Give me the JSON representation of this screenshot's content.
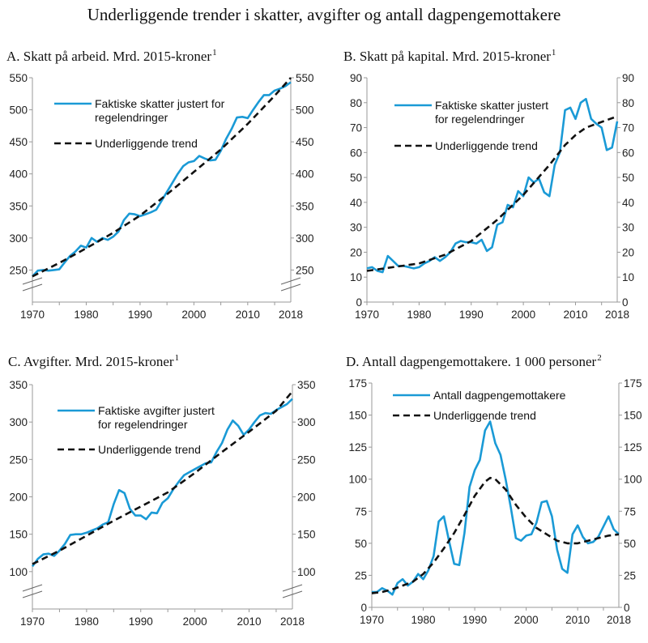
{
  "title": "Underliggende trender i skatter, avgifter og antall dagpengemottakere",
  "colors": {
    "actual": "#1a9ad6",
    "trend": "#111111",
    "axis": "#999999"
  },
  "chart_data": [
    {
      "type": "line",
      "id": "A",
      "title": "A.  Skatt på arbeid. Mrd. 2015-kroner",
      "footnote": "1",
      "ylim": [
        200,
        550
      ],
      "yticks": [
        250,
        300,
        350,
        400,
        450,
        500,
        550
      ],
      "axis_break": true,
      "xlim": [
        1970,
        2018
      ],
      "xtick_labels": [
        "1970",
        "1980",
        "1990",
        "2000",
        "2010",
        "2018"
      ],
      "legend": {
        "actual": [
          "Faktiske skatter justert for",
          "regelendringer"
        ],
        "trend": [
          "Underliggende trend"
        ]
      },
      "series": [
        {
          "name": "Faktiske skatter justert for regelendringer",
          "style": "solid",
          "x": [
            1970,
            1971,
            1972,
            1973,
            1974,
            1975,
            1976,
            1977,
            1978,
            1979,
            1980,
            1981,
            1982,
            1983,
            1984,
            1985,
            1986,
            1987,
            1988,
            1989,
            1990,
            1991,
            1992,
            1993,
            1994,
            1995,
            1996,
            1997,
            1998,
            1999,
            2000,
            2001,
            2002,
            2003,
            2004,
            2005,
            2006,
            2007,
            2008,
            2009,
            2010,
            2011,
            2012,
            2013,
            2014,
            2015,
            2016,
            2017,
            2018
          ],
          "y": [
            240,
            249,
            250,
            249,
            250,
            251,
            262,
            272,
            279,
            288,
            285,
            300,
            294,
            300,
            297,
            302,
            310,
            328,
            338,
            337,
            334,
            337,
            340,
            344,
            358,
            372,
            386,
            400,
            412,
            418,
            420,
            428,
            424,
            421,
            422,
            436,
            455,
            470,
            488,
            489,
            487,
            500,
            512,
            523,
            523,
            530,
            533,
            537,
            543
          ]
        },
        {
          "name": "Underliggende trend",
          "style": "dashed",
          "x": [
            1970,
            1975,
            1980,
            1985,
            1990,
            1995,
            2000,
            2005,
            2010,
            2015,
            2018
          ],
          "y": [
            240,
            261,
            284,
            308,
            335,
            368,
            403,
            438,
            478,
            522,
            550
          ]
        }
      ]
    },
    {
      "type": "line",
      "id": "B",
      "title": "B.  Skatt på kapital. Mrd. 2015-kroner",
      "footnote": "1",
      "ylim": [
        0,
        90
      ],
      "yticks": [
        0,
        10,
        20,
        30,
        40,
        50,
        60,
        70,
        80,
        90
      ],
      "axis_break": false,
      "xlim": [
        1970,
        2018
      ],
      "xtick_labels": [
        "1970",
        "1980",
        "1990",
        "2000",
        "2010",
        "2018"
      ],
      "legend": {
        "actual": [
          "Faktiske skatter justert",
          "for regelendringer"
        ],
        "trend": [
          "Underliggende trend"
        ]
      },
      "series": [
        {
          "name": "Faktiske skatter justert for regelendringer",
          "style": "solid",
          "x": [
            1970,
            1971,
            1972,
            1973,
            1974,
            1975,
            1976,
            1977,
            1978,
            1979,
            1980,
            1981,
            1982,
            1983,
            1984,
            1985,
            1986,
            1987,
            1988,
            1989,
            1990,
            1991,
            1992,
            1993,
            1994,
            1995,
            1996,
            1997,
            1998,
            1999,
            2000,
            2001,
            2002,
            2003,
            2004,
            2005,
            2006,
            2007,
            2008,
            2009,
            2010,
            2011,
            2012,
            2013,
            2014,
            2015,
            2016,
            2017,
            2018
          ],
          "y": [
            13.5,
            14,
            12.5,
            12,
            18.5,
            16.5,
            14.5,
            14.5,
            14,
            13.5,
            14,
            15.5,
            16.5,
            18,
            16.5,
            18,
            20,
            23.5,
            24.5,
            24,
            24,
            23.5,
            25,
            20.5,
            22,
            31,
            32,
            39,
            38,
            44.5,
            42.5,
            50,
            48,
            49.5,
            44,
            42.5,
            55,
            60,
            77,
            78,
            73.5,
            80,
            81.5,
            73.5,
            71.5,
            70,
            61,
            62,
            72.5
          ]
        },
        {
          "name": "Underliggende trend",
          "style": "dashed",
          "x": [
            1970,
            1975,
            1980,
            1985,
            1990,
            1995,
            2000,
            2005,
            2008,
            2010,
            2012,
            2014,
            2016,
            2018
          ],
          "y": [
            12.5,
            14,
            15.5,
            19,
            24.5,
            33,
            43,
            55,
            63,
            67,
            70,
            71.5,
            73,
            74.5
          ]
        }
      ]
    },
    {
      "type": "line",
      "id": "C",
      "title": "C.  Avgifter. Mrd. 2015-kroner",
      "footnote": "1",
      "ylim": [
        50,
        350
      ],
      "yticks": [
        100,
        150,
        200,
        250,
        300,
        350
      ],
      "axis_break": true,
      "xlim": [
        1970,
        2018
      ],
      "xtick_labels": [
        "1970",
        "1980",
        "1990",
        "2000",
        "2010",
        "2018"
      ],
      "legend": {
        "actual": [
          "Faktiske avgifter justert",
          "for regelendringer"
        ],
        "trend": [
          "Underliggende trend"
        ]
      },
      "series": [
        {
          "name": "Faktiske avgifter justert for regelendringer",
          "style": "solid",
          "x": [
            1970,
            1971,
            1972,
            1973,
            1974,
            1975,
            1976,
            1977,
            1978,
            1979,
            1980,
            1981,
            1982,
            1983,
            1984,
            1985,
            1986,
            1987,
            1988,
            1989,
            1990,
            1991,
            1992,
            1993,
            1994,
            1995,
            1996,
            1997,
            1998,
            1999,
            2000,
            2001,
            2002,
            2003,
            2004,
            2005,
            2006,
            2007,
            2008,
            2009,
            2010,
            2011,
            2012,
            2013,
            2014,
            2015,
            2016,
            2017,
            2018
          ],
          "y": [
            107,
            117,
            123,
            124,
            121,
            128,
            137,
            149,
            150,
            150,
            152,
            155,
            158,
            163,
            166,
            190,
            209,
            205,
            184,
            175,
            175,
            170,
            179,
            178,
            192,
            198,
            210,
            220,
            229,
            233,
            237,
            241,
            245,
            246,
            260,
            272,
            290,
            302,
            295,
            283,
            290,
            300,
            309,
            312,
            311,
            316,
            320,
            324,
            331
          ]
        },
        {
          "name": "Underliggende trend",
          "style": "dashed",
          "x": [
            1970,
            1975,
            1980,
            1985,
            1990,
            1995,
            2000,
            2005,
            2010,
            2015,
            2018
          ],
          "y": [
            110,
            128,
            148,
            168,
            187,
            206,
            232,
            260,
            287,
            315,
            341
          ]
        }
      ]
    },
    {
      "type": "line",
      "id": "D",
      "title": "D.  Antall dagpengemottakere. 1 000 personer",
      "footnote": "2",
      "ylim": [
        0,
        175
      ],
      "yticks": [
        0,
        25,
        50,
        75,
        100,
        125,
        150,
        175
      ],
      "axis_break": false,
      "xlim": [
        1970,
        2018
      ],
      "xtick_labels": [
        "1970",
        "1980",
        "1990",
        "2000",
        "2010",
        "2018"
      ],
      "legend": {
        "actual": [
          "Antall dagpengemottakere"
        ],
        "trend": [
          "Underliggende trend"
        ]
      },
      "series": [
        {
          "name": "Antall dagpengemottakere",
          "style": "solid",
          "x": [
            1970,
            1971,
            1972,
            1973,
            1974,
            1975,
            1976,
            1977,
            1978,
            1979,
            1980,
            1981,
            1982,
            1983,
            1984,
            1985,
            1986,
            1987,
            1988,
            1989,
            1990,
            1991,
            1992,
            1993,
            1994,
            1995,
            1996,
            1997,
            1998,
            1999,
            2000,
            2001,
            2002,
            2003,
            2004,
            2005,
            2006,
            2007,
            2008,
            2009,
            2010,
            2011,
            2012,
            2013,
            2014,
            2015,
            2016,
            2017,
            2018
          ],
          "y": [
            12,
            12,
            15,
            13,
            10,
            19,
            22,
            17,
            20,
            26,
            22,
            29,
            40,
            67,
            71,
            52,
            34,
            33,
            58,
            94,
            107,
            115,
            138,
            145,
            128,
            119,
            100,
            78,
            54,
            52,
            56,
            57,
            66,
            82,
            83,
            71,
            45,
            30,
            27,
            57,
            64,
            55,
            50,
            51,
            55,
            63,
            71,
            61,
            57
          ]
        },
        {
          "name": "Underliggende trend",
          "style": "dashed",
          "x": [
            1970,
            1972,
            1974,
            1976,
            1978,
            1980,
            1982,
            1984,
            1986,
            1988,
            1990,
            1992,
            1993,
            1994,
            1996,
            1998,
            2000,
            2002,
            2004,
            2006,
            2008,
            2010,
            2012,
            2014,
            2016,
            2018
          ],
          "y": [
            11,
            12,
            14,
            17,
            20,
            26,
            35,
            46,
            58,
            72,
            87,
            98,
            101,
            100,
            92,
            80,
            70,
            62,
            57,
            52,
            50,
            50,
            52,
            54,
            56,
            57
          ]
        }
      ]
    }
  ]
}
